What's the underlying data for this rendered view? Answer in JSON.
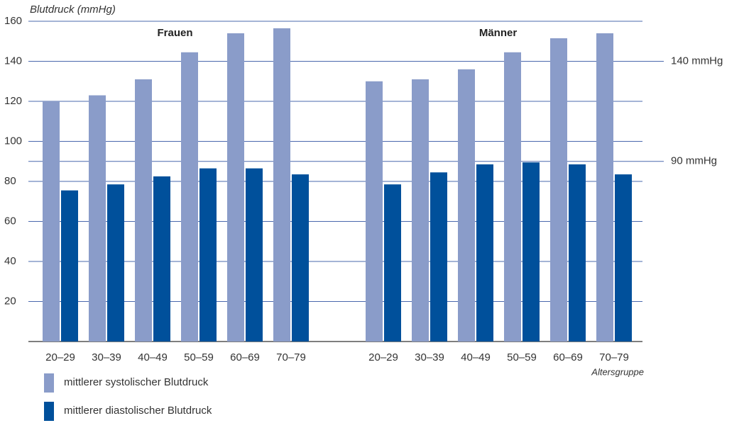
{
  "chart_data": {
    "type": "grouped-bar",
    "y_label": "Blutdruck (mmHg)",
    "x_label": "Altersgruppe",
    "ylim": [
      0,
      160
    ],
    "yticks": [
      20,
      40,
      60,
      80,
      100,
      120,
      140,
      160
    ],
    "grid": true,
    "series": [
      {
        "name": "mittlerer systolischer Blutdruck",
        "color": "#8a9cc9"
      },
      {
        "name": "mittlerer diastolischer Blutdruck",
        "color": "#00509b"
      }
    ],
    "groups": [
      {
        "label": "Frauen",
        "categories": [
          "20–29",
          "30–39",
          "40–49",
          "50–59",
          "60–69",
          "70–79"
        ],
        "series": [
          {
            "values": [
              120,
              123,
              131,
              144.5,
              154,
              156.5
            ]
          },
          {
            "values": [
              75.5,
              78.5,
              82.5,
              86.5,
              86.5,
              83.5
            ]
          }
        ]
      },
      {
        "label": "Männer",
        "categories": [
          "20–29",
          "30–39",
          "40–49",
          "50–59",
          "60–69",
          "70–79"
        ],
        "series": [
          {
            "values": [
              130,
              131,
              136,
              144.5,
              151.5,
              154
            ]
          },
          {
            "values": [
              78.5,
              84.5,
              88.5,
              89.5,
              88.5,
              83.5
            ]
          }
        ]
      }
    ],
    "reference_lines": [
      {
        "value": 140,
        "label": "140 mmHg"
      },
      {
        "value": 90,
        "label": "90 mmHg"
      }
    ]
  }
}
